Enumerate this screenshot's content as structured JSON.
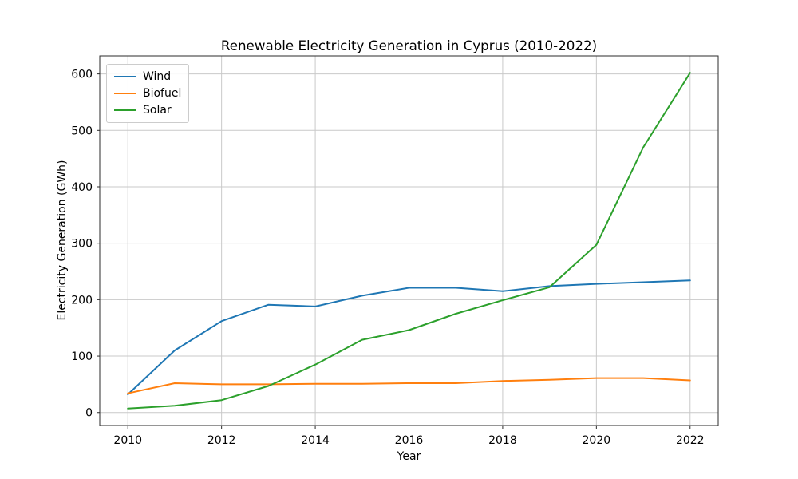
{
  "chart_data": {
    "type": "line",
    "title": "Renewable Electricity Generation in Cyprus (2010-2022)",
    "xlabel": "Year",
    "ylabel": "Electricity Generation (GWh)",
    "x": [
      2010,
      2011,
      2012,
      2013,
      2014,
      2015,
      2016,
      2017,
      2018,
      2019,
      2020,
      2021,
      2022
    ],
    "series": [
      {
        "name": "Wind",
        "color": "#1f77b4",
        "values": [
          32,
          110,
          162,
          191,
          188,
          207,
          221,
          221,
          215,
          224,
          228,
          231,
          234
        ]
      },
      {
        "name": "Biofuel",
        "color": "#ff7f0e",
        "values": [
          34,
          52,
          50,
          50,
          51,
          51,
          52,
          52,
          56,
          58,
          61,
          61,
          57
        ]
      },
      {
        "name": "Solar",
        "color": "#2ca02c",
        "values": [
          7,
          12,
          22,
          47,
          85,
          129,
          146,
          175,
          199,
          222,
          297,
          470,
          602
        ]
      }
    ],
    "xticks": [
      2010,
      2012,
      2014,
      2016,
      2018,
      2020,
      2022
    ],
    "yticks": [
      0,
      100,
      200,
      300,
      400,
      500,
      600
    ],
    "xlim": [
      2009.4,
      2022.6
    ],
    "ylim": [
      -23,
      632
    ],
    "grid": true,
    "legend_position": "upper left",
    "grid_color": "#c9c9c9",
    "spine_color": "#2b2b2b",
    "tick_label_color": "#000000"
  }
}
